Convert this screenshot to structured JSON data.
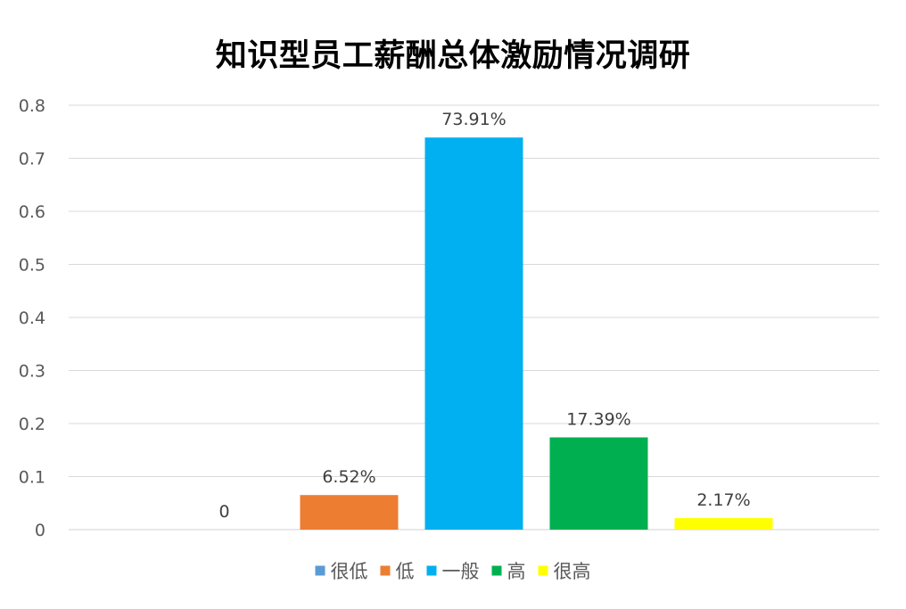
{
  "chart_data": {
    "type": "bar",
    "title": "知识型员工薪酬总体激励情况调研",
    "xlabel": "",
    "ylabel": "",
    "ylim": [
      0,
      0.8
    ],
    "yticks": [
      "0",
      "0.1",
      "0.2",
      "0.3",
      "0.4",
      "0.5",
      "0.6",
      "0.7",
      "0.8"
    ],
    "grid": true,
    "legend_position": "bottom",
    "series": [
      {
        "name": "很低",
        "value": 0,
        "label": "0",
        "color": "#5B9BD5"
      },
      {
        "name": "低",
        "value": 0.0652,
        "label": "6.52%",
        "color": "#ED7D31"
      },
      {
        "name": "一般",
        "value": 0.7391,
        "label": "73.91%",
        "color": "#00B0F0"
      },
      {
        "name": "高",
        "value": 0.1739,
        "label": "17.39%",
        "color": "#00B050"
      },
      {
        "name": "很高",
        "value": 0.0217,
        "label": "2.17%",
        "color": "#FFFF00"
      }
    ]
  }
}
